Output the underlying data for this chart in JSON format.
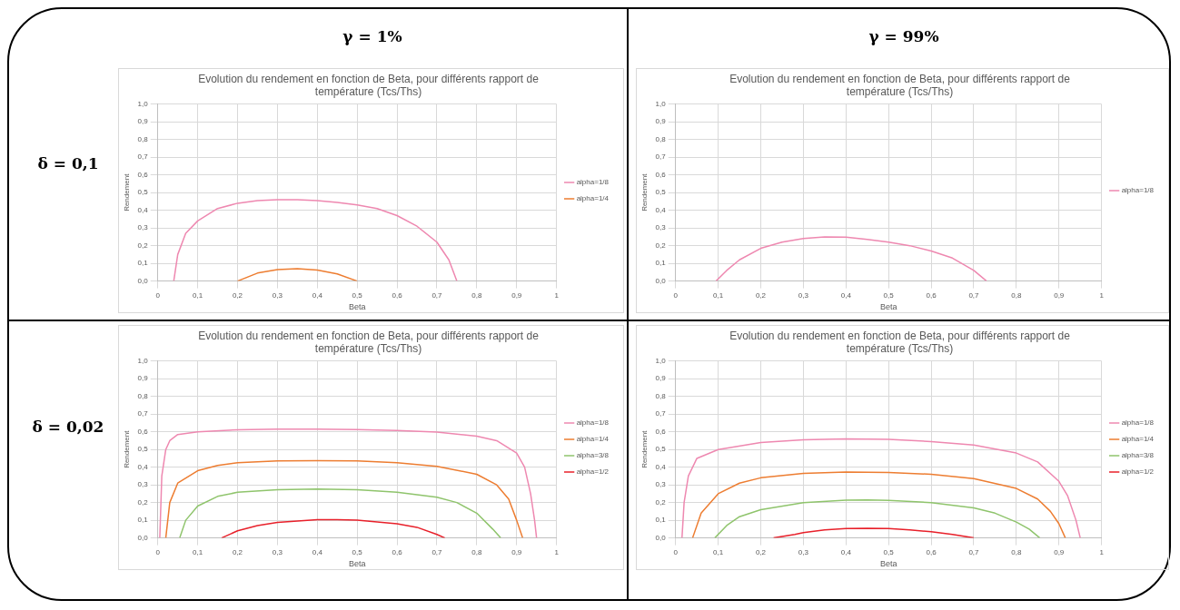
{
  "chart_data": [
    {
      "type": "line",
      "title": "Evolution du rendement en fonction de Beta, pour différents rapport de température (Tcs/Ths)",
      "xlabel": "Beta",
      "ylabel": "Rendement",
      "annotations": [
        "γ = 1%",
        "δ = 0,1"
      ],
      "xlim": [
        0,
        1
      ],
      "ylim": [
        0,
        1
      ],
      "xticks": [
        {
          "value": 0,
          "label": "0"
        },
        {
          "value": 0.1,
          "label": "0,1"
        },
        {
          "value": 0.2,
          "label": "0,2"
        },
        {
          "value": 0.3,
          "label": "0,3"
        },
        {
          "value": 0.4,
          "label": "0,4"
        },
        {
          "value": 0.5,
          "label": "0,5"
        },
        {
          "value": 0.6,
          "label": "0,6"
        },
        {
          "value": 0.7,
          "label": "0,7"
        },
        {
          "value": 0.8,
          "label": "0,8"
        },
        {
          "value": 0.9,
          "label": "0,9"
        },
        {
          "value": 1,
          "label": "1"
        }
      ],
      "yticks": [
        {
          "value": 0,
          "label": "0,0"
        },
        {
          "value": 0.1,
          "label": "0,1"
        },
        {
          "value": 0.2,
          "label": "0,2"
        },
        {
          "value": 0.3,
          "label": "0,3"
        },
        {
          "value": 0.4,
          "label": "0,4"
        },
        {
          "value": 0.5,
          "label": "0,5"
        },
        {
          "value": 0.6,
          "label": "0,6"
        },
        {
          "value": 0.7,
          "label": "0,7"
        },
        {
          "value": 0.8,
          "label": "0,8"
        },
        {
          "value": 0.9,
          "label": "0,9"
        },
        {
          "value": 1,
          "label": "1,0"
        }
      ],
      "grid": true,
      "legend": "right",
      "marker": "none",
      "line_style": "solid",
      "series": [
        {
          "name": "alpha=1/8",
          "color": "#ee88b0",
          "x": [
            0.04,
            0.05,
            0.07,
            0.1,
            0.15,
            0.2,
            0.25,
            0.3,
            0.35,
            0.4,
            0.45,
            0.5,
            0.55,
            0.6,
            0.65,
            0.7,
            0.73,
            0.75
          ],
          "values": [
            0,
            0.15,
            0.27,
            0.34,
            0.41,
            0.44,
            0.455,
            0.46,
            0.46,
            0.455,
            0.445,
            0.43,
            0.41,
            0.37,
            0.31,
            0.22,
            0.12,
            0
          ]
        },
        {
          "name": "alpha=1/4",
          "color": "#ed7d31",
          "x": [
            0.2,
            0.25,
            0.3,
            0.35,
            0.4,
            0.45,
            0.5
          ],
          "values": [
            0,
            0.045,
            0.065,
            0.07,
            0.062,
            0.04,
            0
          ]
        }
      ]
    },
    {
      "type": "line",
      "title": "Evolution du rendement en fonction de Beta, pour différents rapport de température (Tcs/Ths)",
      "xlabel": "Beta",
      "ylabel": "Rendement",
      "annotations": [
        "γ = 99%"
      ],
      "xlim": [
        0,
        1
      ],
      "ylim": [
        0,
        1
      ],
      "xticks": [
        {
          "value": 0,
          "label": "0"
        },
        {
          "value": 0.1,
          "label": "0,1"
        },
        {
          "value": 0.2,
          "label": "0,2"
        },
        {
          "value": 0.3,
          "label": "0,3"
        },
        {
          "value": 0.4,
          "label": "0,4"
        },
        {
          "value": 0.5,
          "label": "0,5"
        },
        {
          "value": 0.6,
          "label": "0,6"
        },
        {
          "value": 0.7,
          "label": "0,7"
        },
        {
          "value": 0.8,
          "label": "0,8"
        },
        {
          "value": 0.9,
          "label": "0,9"
        },
        {
          "value": 1,
          "label": "1"
        }
      ],
      "yticks": [
        {
          "value": 0,
          "label": "0,0"
        },
        {
          "value": 0.1,
          "label": "0,1"
        },
        {
          "value": 0.2,
          "label": "0,2"
        },
        {
          "value": 0.3,
          "label": "0,3"
        },
        {
          "value": 0.4,
          "label": "0,4"
        },
        {
          "value": 0.5,
          "label": "0,5"
        },
        {
          "value": 0.6,
          "label": "0,6"
        },
        {
          "value": 0.7,
          "label": "0,7"
        },
        {
          "value": 0.8,
          "label": "0,8"
        },
        {
          "value": 0.9,
          "label": "0,9"
        },
        {
          "value": 1,
          "label": "1,0"
        }
      ],
      "grid": true,
      "legend": "right",
      "marker": "none",
      "line_style": "solid",
      "series": [
        {
          "name": "alpha=1/8",
          "color": "#ee88b0",
          "x": [
            0.095,
            0.12,
            0.15,
            0.2,
            0.25,
            0.3,
            0.35,
            0.4,
            0.45,
            0.5,
            0.55,
            0.6,
            0.65,
            0.7,
            0.73
          ],
          "values": [
            0,
            0.06,
            0.12,
            0.185,
            0.22,
            0.24,
            0.25,
            0.248,
            0.235,
            0.22,
            0.2,
            0.17,
            0.13,
            0.06,
            0
          ]
        }
      ]
    },
    {
      "type": "line",
      "title": "Evolution du rendement en fonction de Beta, pour différents rapport de température (Tcs/Ths)",
      "xlabel": "Beta",
      "ylabel": "Rendement",
      "annotations": [
        "δ = 0,02"
      ],
      "xlim": [
        0,
        1
      ],
      "ylim": [
        0,
        1
      ],
      "xticks": [
        {
          "value": 0,
          "label": "0"
        },
        {
          "value": 0.1,
          "label": "0,1"
        },
        {
          "value": 0.2,
          "label": "0,2"
        },
        {
          "value": 0.3,
          "label": "0,3"
        },
        {
          "value": 0.4,
          "label": "0,4"
        },
        {
          "value": 0.5,
          "label": "0,5"
        },
        {
          "value": 0.6,
          "label": "0,6"
        },
        {
          "value": 0.7,
          "label": "0,7"
        },
        {
          "value": 0.8,
          "label": "0,8"
        },
        {
          "value": 0.9,
          "label": "0,9"
        },
        {
          "value": 1,
          "label": "1"
        }
      ],
      "yticks": [
        {
          "value": 0,
          "label": "0,0"
        },
        {
          "value": 0.1,
          "label": "0,1"
        },
        {
          "value": 0.2,
          "label": "0,2"
        },
        {
          "value": 0.3,
          "label": "0,3"
        },
        {
          "value": 0.4,
          "label": "0,4"
        },
        {
          "value": 0.5,
          "label": "0,5"
        },
        {
          "value": 0.6,
          "label": "0,6"
        },
        {
          "value": 0.7,
          "label": "0,7"
        },
        {
          "value": 0.8,
          "label": "0,8"
        },
        {
          "value": 0.9,
          "label": "0,9"
        },
        {
          "value": 1,
          "label": "1,0"
        }
      ],
      "grid": true,
      "legend": "right",
      "marker": "none",
      "line_style": "solid",
      "series": [
        {
          "name": "alpha=1/8",
          "color": "#ee88b0",
          "x": [
            0.005,
            0.01,
            0.02,
            0.03,
            0.05,
            0.1,
            0.2,
            0.3,
            0.4,
            0.5,
            0.6,
            0.7,
            0.8,
            0.85,
            0.9,
            0.92,
            0.935,
            0.945,
            0.95
          ],
          "values": [
            0,
            0.35,
            0.5,
            0.55,
            0.585,
            0.6,
            0.612,
            0.615,
            0.615,
            0.613,
            0.608,
            0.598,
            0.575,
            0.55,
            0.48,
            0.4,
            0.25,
            0.1,
            0
          ]
        },
        {
          "name": "alpha=1/4",
          "color": "#ed7d31",
          "x": [
            0.02,
            0.03,
            0.05,
            0.1,
            0.15,
            0.2,
            0.3,
            0.4,
            0.5,
            0.6,
            0.7,
            0.8,
            0.85,
            0.88,
            0.9,
            0.915
          ],
          "values": [
            0,
            0.2,
            0.31,
            0.38,
            0.41,
            0.425,
            0.435,
            0.437,
            0.435,
            0.425,
            0.405,
            0.36,
            0.3,
            0.22,
            0.1,
            0
          ]
        },
        {
          "name": "alpha=3/8",
          "color": "#8fc46c",
          "x": [
            0.055,
            0.07,
            0.1,
            0.15,
            0.2,
            0.3,
            0.4,
            0.5,
            0.6,
            0.7,
            0.75,
            0.8,
            0.84,
            0.86
          ],
          "values": [
            0,
            0.1,
            0.18,
            0.235,
            0.258,
            0.272,
            0.276,
            0.273,
            0.258,
            0.23,
            0.2,
            0.14,
            0.05,
            0
          ]
        },
        {
          "name": "alpha=1/2",
          "color": "#e8202a",
          "x": [
            0.16,
            0.2,
            0.25,
            0.3,
            0.4,
            0.45,
            0.5,
            0.6,
            0.65,
            0.7,
            0.72
          ],
          "values": [
            0,
            0.04,
            0.07,
            0.088,
            0.103,
            0.103,
            0.1,
            0.08,
            0.06,
            0.02,
            0
          ]
        }
      ]
    },
    {
      "type": "line",
      "title": "Evolution du rendement en fonction de Beta, pour différents rapport de température (Tcs/Ths)",
      "xlabel": "Beta",
      "ylabel": "Rendement",
      "xlim": [
        0,
        1
      ],
      "ylim": [
        0,
        1
      ],
      "xticks": [
        {
          "value": 0,
          "label": "0"
        },
        {
          "value": 0.1,
          "label": "0,1"
        },
        {
          "value": 0.2,
          "label": "0,2"
        },
        {
          "value": 0.3,
          "label": "0,3"
        },
        {
          "value": 0.4,
          "label": "0,4"
        },
        {
          "value": 0.5,
          "label": "0,5"
        },
        {
          "value": 0.6,
          "label": "0,6"
        },
        {
          "value": 0.7,
          "label": "0,7"
        },
        {
          "value": 0.8,
          "label": "0,8"
        },
        {
          "value": 0.9,
          "label": "0,9"
        },
        {
          "value": 1,
          "label": "1"
        }
      ],
      "yticks": [
        {
          "value": 0,
          "label": "0,0"
        },
        {
          "value": 0.1,
          "label": "0,1"
        },
        {
          "value": 0.2,
          "label": "0,2"
        },
        {
          "value": 0.3,
          "label": "0,3"
        },
        {
          "value": 0.4,
          "label": "0,4"
        },
        {
          "value": 0.5,
          "label": "0,5"
        },
        {
          "value": 0.6,
          "label": "0,6"
        },
        {
          "value": 0.7,
          "label": "0,7"
        },
        {
          "value": 0.8,
          "label": "0,8"
        },
        {
          "value": 0.9,
          "label": "0,9"
        },
        {
          "value": 1,
          "label": "1,0"
        }
      ],
      "grid": true,
      "legend": "right",
      "marker": "none",
      "line_style": "solid",
      "series": [
        {
          "name": "alpha=1/8",
          "color": "#ee88b0",
          "x": [
            0.015,
            0.02,
            0.03,
            0.05,
            0.1,
            0.2,
            0.3,
            0.4,
            0.5,
            0.6,
            0.7,
            0.8,
            0.85,
            0.9,
            0.92,
            0.94,
            0.95
          ],
          "values": [
            0,
            0.2,
            0.35,
            0.45,
            0.5,
            0.54,
            0.555,
            0.56,
            0.557,
            0.545,
            0.525,
            0.48,
            0.43,
            0.32,
            0.24,
            0.1,
            0
          ]
        },
        {
          "name": "alpha=1/4",
          "color": "#ed7d31",
          "x": [
            0.04,
            0.06,
            0.1,
            0.15,
            0.2,
            0.3,
            0.4,
            0.5,
            0.6,
            0.7,
            0.8,
            0.85,
            0.88,
            0.9,
            0.915
          ],
          "values": [
            0,
            0.14,
            0.25,
            0.31,
            0.34,
            0.365,
            0.373,
            0.37,
            0.36,
            0.335,
            0.28,
            0.22,
            0.15,
            0.08,
            0
          ]
        },
        {
          "name": "alpha=3/8",
          "color": "#8fc46c",
          "x": [
            0.092,
            0.12,
            0.15,
            0.2,
            0.3,
            0.4,
            0.45,
            0.5,
            0.6,
            0.7,
            0.75,
            0.8,
            0.83,
            0.855
          ],
          "values": [
            0,
            0.07,
            0.12,
            0.16,
            0.2,
            0.213,
            0.215,
            0.212,
            0.2,
            0.17,
            0.14,
            0.09,
            0.05,
            0
          ]
        },
        {
          "name": "alpha=1/2",
          "color": "#e8202a",
          "x": [
            0.23,
            0.28,
            0.3,
            0.35,
            0.4,
            0.45,
            0.5,
            0.55,
            0.6,
            0.65,
            0.7
          ],
          "values": [
            0,
            0.02,
            0.03,
            0.045,
            0.053,
            0.055,
            0.053,
            0.045,
            0.035,
            0.02,
            0
          ]
        }
      ]
    }
  ]
}
